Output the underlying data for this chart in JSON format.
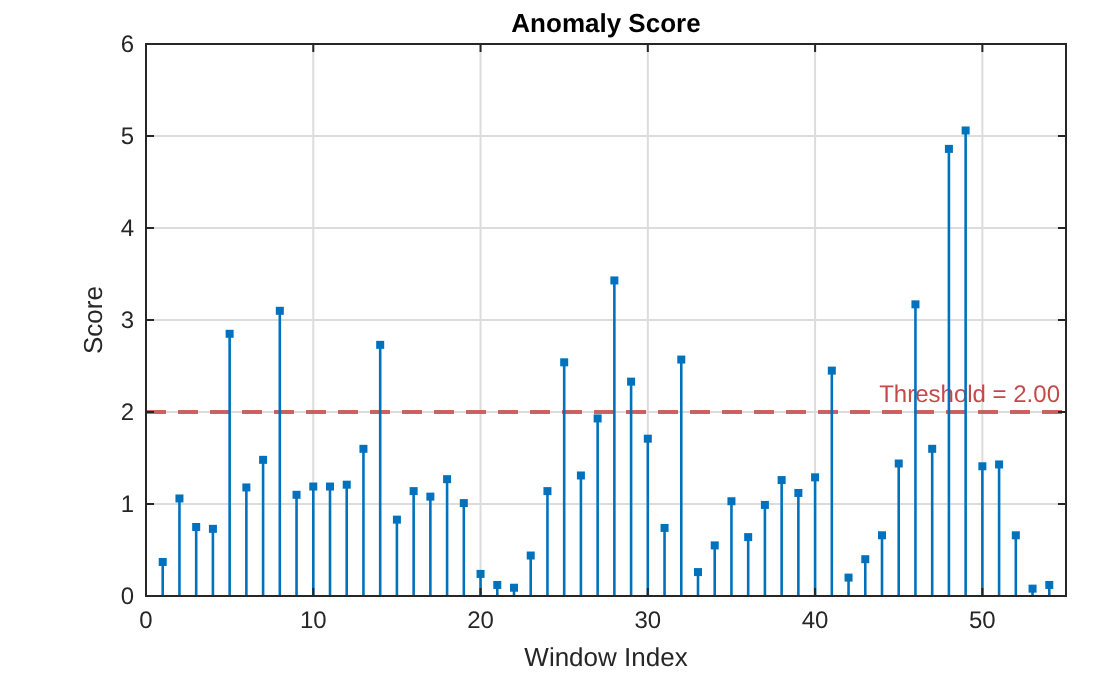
{
  "chart_data": {
    "type": "lollipop",
    "title": "Anomaly Score",
    "xlabel": "Window Index",
    "ylabel": "Score",
    "x": [
      1,
      2,
      3,
      4,
      5,
      6,
      7,
      8,
      9,
      10,
      11,
      12,
      13,
      14,
      15,
      16,
      17,
      18,
      19,
      20,
      21,
      22,
      23,
      24,
      25,
      26,
      27,
      28,
      29,
      30,
      31,
      32,
      33,
      34,
      35,
      36,
      37,
      38,
      39,
      40,
      41,
      42,
      43,
      44,
      45,
      46,
      47,
      48,
      49,
      50,
      51,
      52,
      53,
      54
    ],
    "series": [
      {
        "color": "#0072bd",
        "values": [
          0.37,
          1.06,
          0.75,
          0.73,
          2.85,
          1.18,
          1.48,
          3.1,
          1.1,
          1.19,
          1.19,
          1.21,
          1.6,
          2.73,
          0.83,
          1.14,
          1.08,
          1.27,
          1.01,
          0.24,
          0.12,
          0.09,
          0.44,
          1.14,
          2.54,
          1.31,
          1.93,
          3.43,
          2.33,
          1.71,
          0.74,
          2.57,
          0.26,
          0.55,
          1.03,
          0.64,
          0.99,
          1.26,
          1.12,
          1.29,
          2.45,
          0.2,
          0.4,
          0.66,
          1.44,
          3.17,
          1.6,
          4.86,
          5.06,
          1.41,
          1.43,
          0.66,
          0.08,
          0.12
        ]
      }
    ],
    "xlim": [
      0,
      55
    ],
    "xticks": [
      0,
      10,
      20,
      30,
      40,
      50
    ],
    "ylim": [
      0,
      6
    ],
    "yticks": [
      0,
      1,
      2,
      3,
      4,
      5,
      6
    ],
    "grid": true,
    "marker": "square",
    "ref_lines": [
      {
        "axis": "y",
        "value": 2,
        "label": "Threshold = 2.00",
        "color": "#c44a4a",
        "line_style": "dashed"
      }
    ]
  }
}
